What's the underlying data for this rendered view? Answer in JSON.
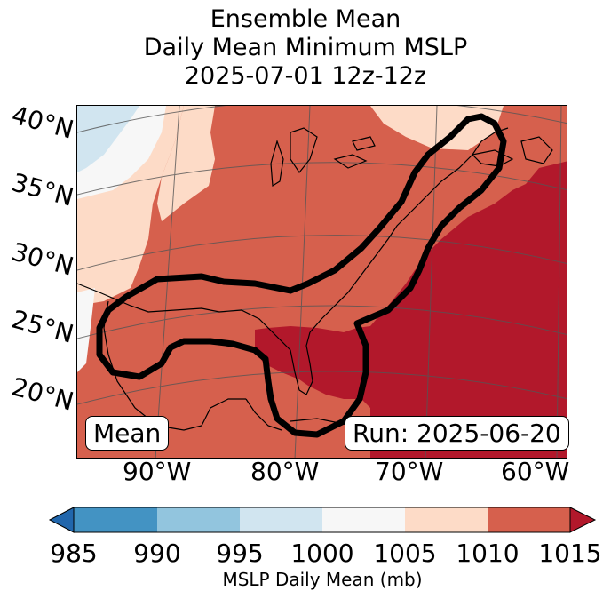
{
  "title": {
    "line1": "Ensemble Mean",
    "line2": "Daily Mean Minimum MSLP",
    "line3": "2025-07-01 12z-12z"
  },
  "map": {
    "lat_labels": [
      "40°N",
      "35°N",
      "30°N",
      "25°N",
      "20°N"
    ],
    "lon_labels": [
      "90°W",
      "80°W",
      "70°W",
      "60°W"
    ],
    "box_left": "Mean",
    "box_right": "Run: 2025-06-20"
  },
  "colorbar": {
    "ticks": [
      "985",
      "990",
      "995",
      "1000",
      "1005",
      "1010",
      "1015"
    ],
    "label": "MSLP Daily Mean (mb)",
    "colors": [
      "#2166ac",
      "#4393c3",
      "#92c5de",
      "#d1e5f0",
      "#f7f7f7",
      "#fddbc7",
      "#d6604d",
      "#b2182b"
    ]
  }
}
